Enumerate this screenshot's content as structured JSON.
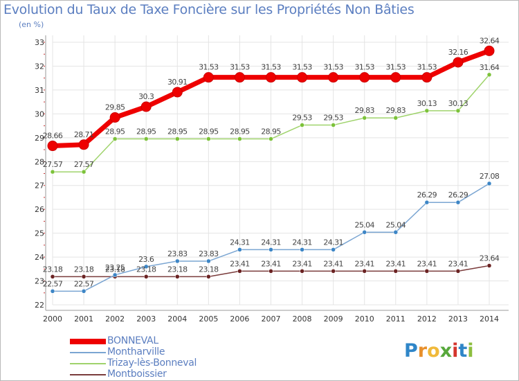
{
  "title": "Evolution du Taux de Taxe Foncière sur les Propriétés Non Bâties",
  "unit": "(en %)",
  "logo": {
    "letters": [
      "P",
      "r",
      "o",
      "x",
      "i",
      "t",
      "i"
    ],
    "colors": [
      "#2f86c8",
      "#e8902c",
      "#f0b93a",
      "#57a83b",
      "#d4352d",
      "#2f86c8",
      "#8dbe3f"
    ]
  },
  "colors": {
    "axis": "#9a9a9a",
    "grid": "#e4e4e4",
    "tick_text": "#333333",
    "label_text": "#444444",
    "tick_mark": "#cc3333"
  },
  "chart_data": {
    "type": "line",
    "title": "Evolution du Taux de Taxe Foncière sur les Propriétés Non Bâties",
    "ylabel": "(en %)",
    "xlabel": "",
    "x": [
      2000,
      2001,
      2002,
      2003,
      2004,
      2005,
      2006,
      2007,
      2008,
      2009,
      2010,
      2011,
      2012,
      2013,
      2014
    ],
    "ylim": [
      22,
      33
    ],
    "yticks": [
      22,
      23,
      24,
      25,
      26,
      27,
      28,
      29,
      30,
      31,
      32,
      33
    ],
    "grid": true,
    "legend_position": "bottom-left",
    "series": [
      {
        "name": "BONNEVAL",
        "values": [
          28.66,
          28.71,
          29.85,
          30.3,
          30.91,
          31.53,
          31.53,
          31.53,
          31.53,
          31.53,
          31.53,
          31.53,
          31.53,
          32.16,
          32.64
        ],
        "labels": [
          "28.66",
          "28.71",
          "29.85",
          "30.3",
          "30.91",
          "31.53",
          "31.53",
          "31.53",
          "31.53",
          "31.53",
          "31.53",
          "31.53",
          "31.53",
          "32.16",
          "32.64"
        ],
        "color": "#ee0000",
        "marker_color": "#ee0000"
      },
      {
        "name": "Montharville",
        "values": [
          22.57,
          22.57,
          23.25,
          23.6,
          23.83,
          23.83,
          24.31,
          24.31,
          24.31,
          24.31,
          25.04,
          25.04,
          26.29,
          26.29,
          27.08
        ],
        "labels": [
          "22.57",
          "22.57",
          "23.25",
          "23.6",
          "23.83",
          "23.83",
          "24.31",
          "24.31",
          "24.31",
          "24.31",
          "25.04",
          "25.04",
          "26.29",
          "26.29",
          "27.08"
        ],
        "color": "#7aa5d2",
        "marker_color": "#3d86c6"
      },
      {
        "name": "Trizay-lès-Bonneval",
        "values": [
          27.57,
          27.57,
          28.95,
          28.95,
          28.95,
          28.95,
          28.95,
          28.95,
          29.53,
          29.53,
          29.83,
          29.83,
          30.13,
          30.13,
          31.64
        ],
        "labels": [
          "27.57",
          "27.57",
          "28.95",
          "28.95",
          "28.95",
          "28.95",
          "28.95",
          "28.95",
          "29.53",
          "29.53",
          "29.83",
          "29.83",
          "30.13",
          "30.13",
          "31.64"
        ],
        "color": "#9fd36b",
        "marker_color": "#7cc23a"
      },
      {
        "name": "Montboissier",
        "values": [
          23.18,
          23.18,
          23.18,
          23.18,
          23.18,
          23.18,
          23.41,
          23.41,
          23.41,
          23.41,
          23.41,
          23.41,
          23.41,
          23.41,
          23.64
        ],
        "labels": [
          "23.18",
          "23.18",
          "23.18",
          "23.18",
          "23.18",
          "23.18",
          "23.41",
          "23.41",
          "23.41",
          "23.41",
          "23.41",
          "23.41",
          "23.41",
          "23.41",
          "23.64"
        ],
        "color": "#7a3b3b",
        "marker_color": "#6b2323"
      }
    ]
  }
}
